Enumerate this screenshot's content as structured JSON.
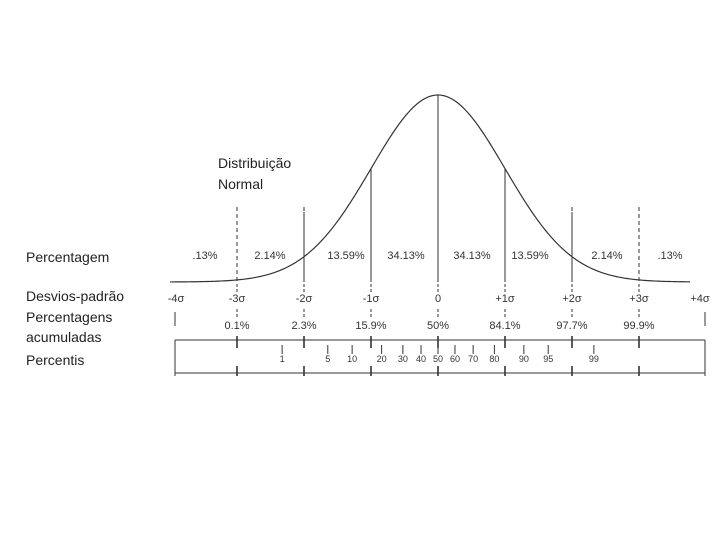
{
  "curve_label": [
    "Distribuição",
    "Normal"
  ],
  "row_labels": {
    "percentagem": "Percentagem",
    "desvios": "Desvios-padrão",
    "acumuladas": [
      "Percentagens",
      "acumuladas"
    ],
    "percentis": "Percentis"
  },
  "sigma_ticks": [
    "-4σ",
    "-3σ",
    "-2σ",
    "-1σ",
    "0",
    "+1σ",
    "+2σ",
    "+3σ",
    "+4σ"
  ],
  "band_percentages": [
    ".13%",
    "2.14%",
    "13.59%",
    "34.13%",
    "34.13%",
    "13.59%",
    "2.14%",
    ".13%"
  ],
  "cumulative": [
    {
      "sigma": -3,
      "label": "0.1%"
    },
    {
      "sigma": -2,
      "label": "2.3%"
    },
    {
      "sigma": -1,
      "label": "15.9%"
    },
    {
      "sigma": 0,
      "label": "50%"
    },
    {
      "sigma": 1,
      "label": "84.1%"
    },
    {
      "sigma": 2,
      "label": "97.7%"
    },
    {
      "sigma": 3,
      "label": "99.9%"
    }
  ],
  "percentiles": [
    1,
    5,
    10,
    20,
    30,
    40,
    50,
    60,
    70,
    80,
    90,
    95,
    99
  ],
  "colors": {
    "line": "#333333",
    "text": "#222222",
    "background": "#ffffff"
  }
}
